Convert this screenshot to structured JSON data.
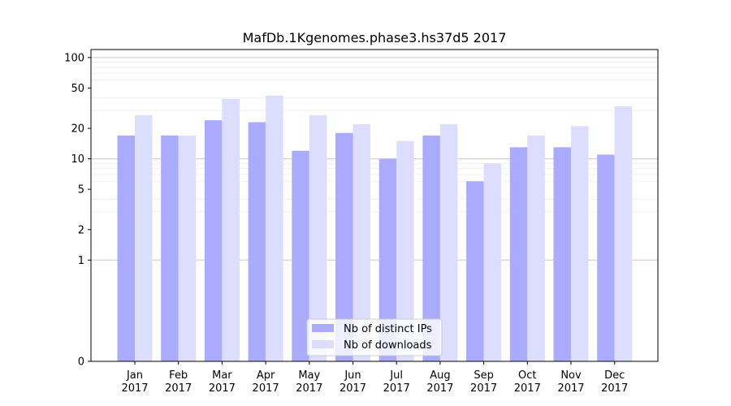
{
  "chart_data": {
    "type": "bar",
    "title": "MafDb.1Kgenomes.phase3.hs37d5 2017",
    "xlabel": "",
    "ylabel": "",
    "y_scale": "symlog",
    "ylim": [
      0,
      120
    ],
    "y_ticks": [
      0,
      1,
      2,
      5,
      10,
      20,
      50,
      100
    ],
    "grid": true,
    "legend_position": "bottom-center",
    "categories": [
      [
        "Jan",
        "2017"
      ],
      [
        "Feb",
        "2017"
      ],
      [
        "Mar",
        "2017"
      ],
      [
        "Apr",
        "2017"
      ],
      [
        "May",
        "2017"
      ],
      [
        "Jun",
        "2017"
      ],
      [
        "Jul",
        "2017"
      ],
      [
        "Aug",
        "2017"
      ],
      [
        "Sep",
        "2017"
      ],
      [
        "Oct",
        "2017"
      ],
      [
        "Nov",
        "2017"
      ],
      [
        "Dec",
        "2017"
      ]
    ],
    "series": [
      {
        "name": "Nb of distinct IPs",
        "color": "#aaaaff",
        "values": [
          17,
          17,
          24,
          23,
          12,
          18,
          10,
          17,
          6,
          13,
          13,
          11
        ]
      },
      {
        "name": "Nb of downloads",
        "color": "#ddddff",
        "values": [
          27,
          17,
          39,
          42,
          27,
          22,
          15,
          22,
          9,
          17,
          21,
          33
        ]
      }
    ]
  }
}
